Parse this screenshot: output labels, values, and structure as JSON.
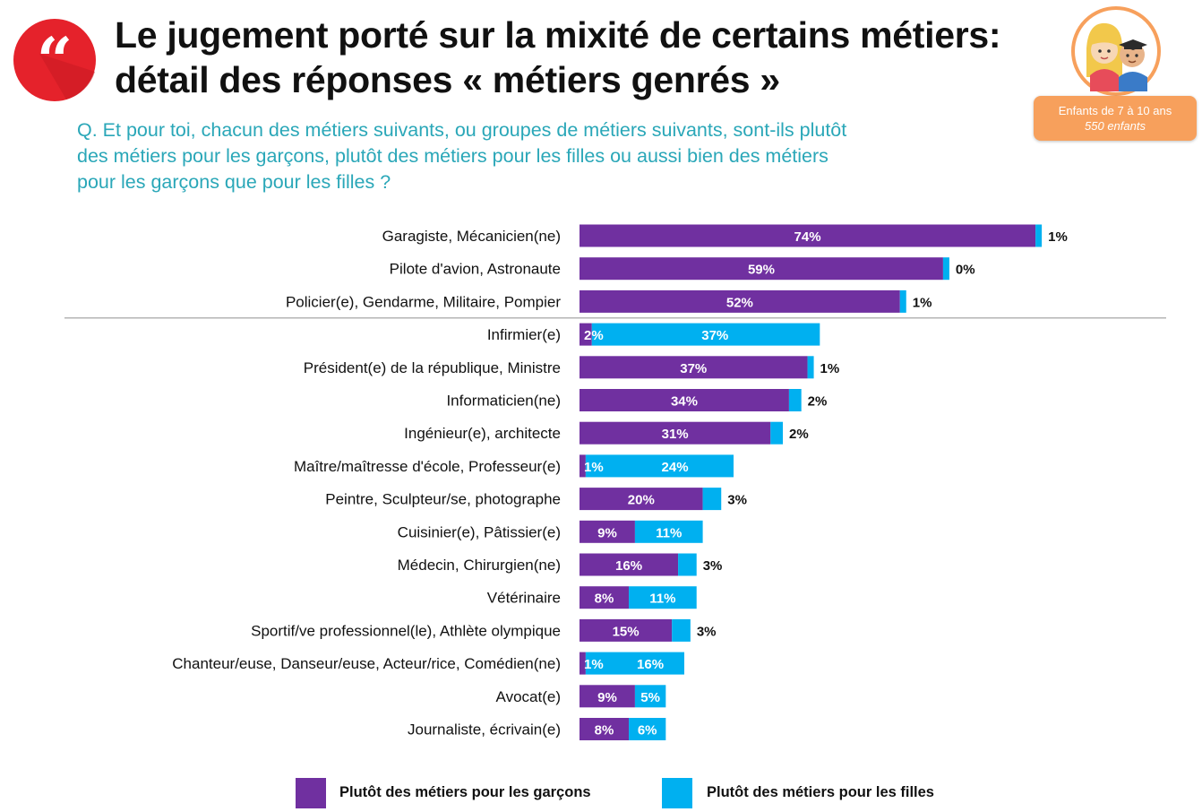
{
  "header": {
    "title_line1": "Le jugement porté sur la mixité de certains métiers:",
    "title_line2": "détail des réponses « métiers genrés »",
    "question_line1": "Q. Et pour toi, chacun des métiers suivants, ou groupes de métiers suivants, sont-ils plutôt",
    "question_line2": "des métiers pour les garçons, plutôt des métiers pour les filles ou aussi bien des métiers",
    "question_line3": "pour les garçons que pour les filles ?"
  },
  "sample": {
    "line1": "Enfants de 7 à 10 ans",
    "line2": "550 enfants"
  },
  "icons": {
    "quote": "quote-mark-icon",
    "avatar": "children-avatar-icon"
  },
  "colors": {
    "boys": "#7030a0",
    "girls": "#00b0f0",
    "quote_circle": "#e5222b",
    "badge": "#f7a05c",
    "question": "#2aa7b8"
  },
  "legend": {
    "boys_label": "Plutôt des métiers pour les garçons",
    "girls_label": "Plutôt des métiers pour les filles"
  },
  "chart_data": {
    "type": "bar",
    "orientation": "horizontal",
    "stacked": true,
    "categories": [
      "Garagiste, Mécanicien(ne)",
      "Pilote d'avion, Astronaute",
      "Policier(e), Gendarme, Militaire, Pompier",
      "Infirmier(e)",
      "Président(e) de la république, Ministre",
      "Informaticien(ne)",
      "Ingénieur(e), architecte",
      "Maître/maîtresse d'école, Professeur(e)",
      "Peintre, Sculpteur/se, photographe",
      "Cuisinier(e), Pâtissier(e)",
      "Médecin, Chirurgien(ne)",
      "Vétérinaire",
      "Sportif/ve professionnel(le), Athlète olympique",
      "Chanteur/euse, Danseur/euse, Acteur/rice, Comédien(ne)",
      "Avocat(e)",
      "Journaliste, écrivain(e)"
    ],
    "series": [
      {
        "name": "Plutôt des métiers pour les garçons",
        "values": [
          74,
          59,
          52,
          2,
          37,
          34,
          31,
          1,
          20,
          9,
          16,
          8,
          15,
          1,
          9,
          8
        ]
      },
      {
        "name": "Plutôt des métiers pour les filles",
        "values": [
          1,
          0,
          1,
          37,
          1,
          2,
          2,
          24,
          3,
          11,
          3,
          11,
          3,
          16,
          5,
          6
        ]
      }
    ],
    "girls_label_outside": [
      true,
      true,
      true,
      false,
      true,
      true,
      true,
      false,
      true,
      false,
      true,
      false,
      true,
      false,
      false,
      false
    ],
    "boys_labels": [
      "74%",
      "59%",
      "52%",
      "2%",
      "37%",
      "34%",
      "31%",
      "1%",
      "20%",
      "9%",
      "16%",
      "8%",
      "15%",
      "1%",
      "9%",
      "8%"
    ],
    "girls_labels": [
      "1%",
      "0%",
      "1%",
      "37%",
      "1%",
      "2%",
      "2%",
      "24%",
      "3%",
      "11%",
      "3%",
      "11%",
      "3%",
      "16%",
      "5%",
      "6%"
    ],
    "separator_after_index": 2,
    "legend_position": "bottom"
  }
}
